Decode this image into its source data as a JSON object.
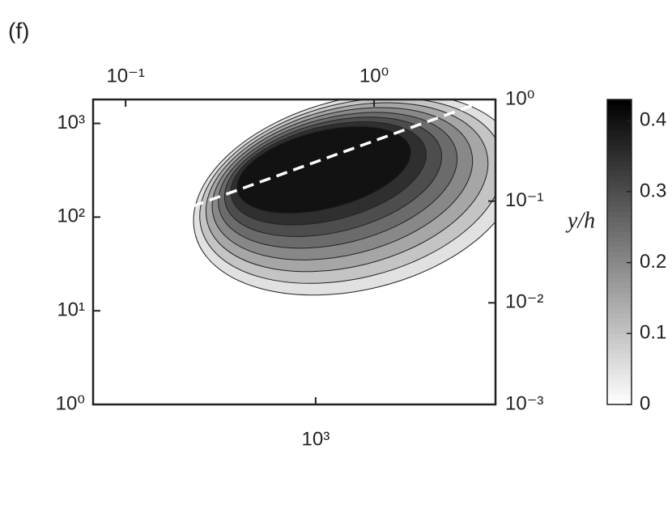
{
  "chart_data": {
    "type": "contour",
    "panel_label": "(f)",
    "y2_label": "y/h",
    "xlim": [
      127,
      5300
    ],
    "xticks": [
      {
        "value": 1000,
        "label": "10³"
      }
    ],
    "x2lim": [
      0.074,
      3.08
    ],
    "x2ticks": [
      {
        "value": 0.1,
        "label": "10⁻¹"
      },
      {
        "value": 1,
        "label": "10⁰"
      }
    ],
    "ylim": [
      1,
      1800
    ],
    "yticks": [
      {
        "value": 1,
        "label": "10⁰"
      },
      {
        "value": 10,
        "label": "10¹"
      },
      {
        "value": 100,
        "label": "10²"
      },
      {
        "value": 1000,
        "label": "10³"
      }
    ],
    "y2lim": [
      0.001,
      1
    ],
    "y2ticks": [
      {
        "value": 0.001,
        "label": "10⁻³"
      },
      {
        "value": 0.01,
        "label": "10⁻²"
      },
      {
        "value": 0.1,
        "label": "10⁻¹"
      },
      {
        "value": 1,
        "label": "10⁰"
      }
    ],
    "xscale": "log",
    "yscale": "log",
    "levels": [
      0.05,
      0.1,
      0.15,
      0.2,
      0.25,
      0.3,
      0.35,
      0.4
    ],
    "clim": [
      0,
      0.43
    ],
    "cticks": [
      0,
      0.1,
      0.2,
      0.3,
      0.4
    ],
    "colormap": [
      "#ffffff",
      "#000000"
    ]
  }
}
